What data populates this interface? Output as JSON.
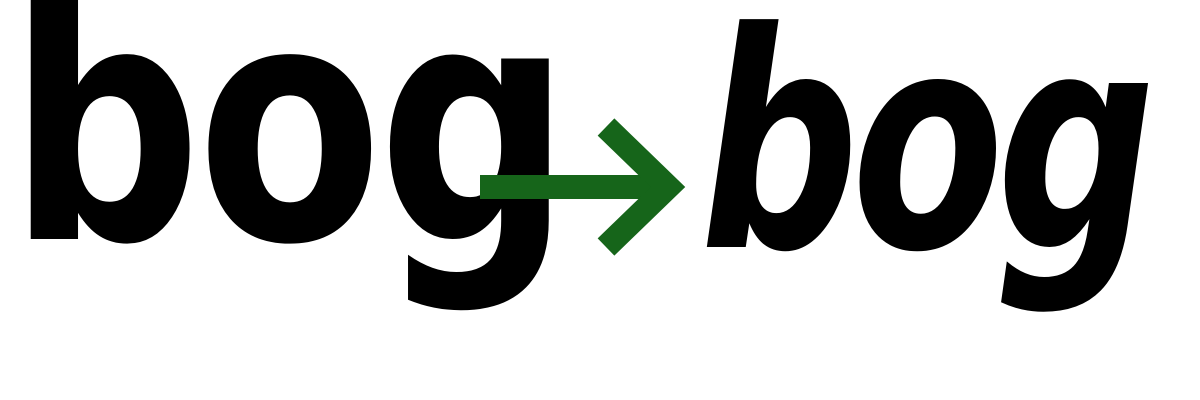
{
  "words": {
    "source": "bog",
    "target": "bog"
  },
  "arrow": {
    "icon": "right-arrow-icon",
    "color": "#16651a"
  },
  "text_color": "#000000",
  "background": "#ffffff"
}
